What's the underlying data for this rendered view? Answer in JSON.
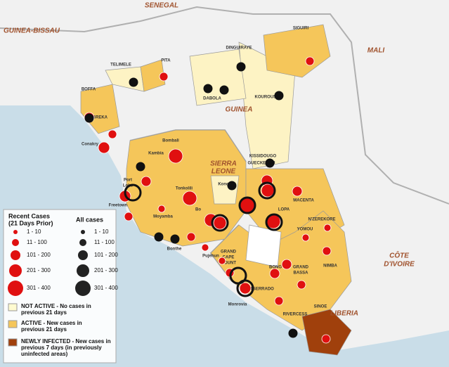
{
  "countries": [
    "SENEGAL",
    "GUINEA-BISSAU",
    "MALI",
    "GUINEA",
    "SIERRA",
    "LEONE",
    "LIBERIA",
    "CÔTE",
    "D'IVOIRE"
  ],
  "places": [
    "SIGUIRI",
    "DINGUIRAYE",
    "KOUROUSSA",
    "TELIMELE",
    "PITA",
    "DABOLA",
    "BOFFA",
    "DUBREKA",
    "Conakry",
    "Kambia",
    "Bombali",
    "Port",
    "Loko",
    "Freetown",
    "Tonkolili",
    "Kono",
    "KISSIDOUGO",
    "GUECKEDOU",
    "MACENTA",
    "N'ZEREKORE",
    "YOMOU",
    "LOPA",
    "Bo",
    "Moyamba",
    "Bonthe",
    "Pujehun",
    "GRAND",
    "CAPE",
    "MOUNT",
    "BONG",
    "NIMBA",
    "MONTSERRADO",
    "GRAND",
    "BASSA",
    "RIVERCESS",
    "SINOE",
    "Monrovia"
  ],
  "legend": {
    "recent_title": [
      "Recent Cases",
      "(21 Days Prior)"
    ],
    "all_title": "All cases",
    "recent_sizes": [
      "1 - 10",
      "11 - 100",
      "101 - 200",
      "201 - 300",
      "301 - 400"
    ],
    "all_sizes": [
      "1 - 10",
      "11 - 100",
      "101 - 200",
      "201 - 300",
      "301 - 400"
    ],
    "status": [
      {
        "lines": [
          "NOT ACTIVE - No cases in",
          "previous 21 days"
        ]
      },
      {
        "lines": [
          "ACTIVE - New cases in",
          "previous 21 days"
        ]
      },
      {
        "lines": [
          "NEWLY INFECTED - New cases in",
          "previous  7 days (in previously",
          "uninfected areas)"
        ]
      }
    ]
  }
}
